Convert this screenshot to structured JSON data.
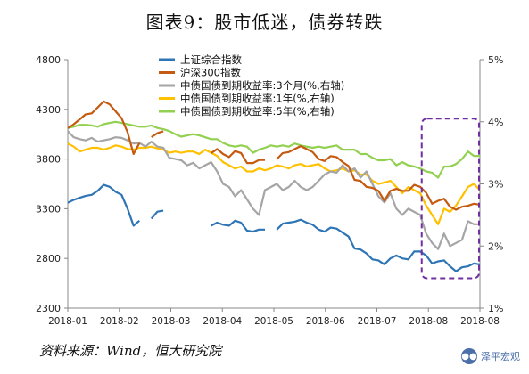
{
  "title": "图表9：股市低迷，债券转跌",
  "source": "资料来源：Wind，恒大研究院",
  "brand": {
    "label": "泽平宏观",
    "icon": "wechat-logo-icon"
  },
  "chart_data": {
    "type": "line",
    "x": [
      "2018-01-02",
      "2018-01-05",
      "2018-01-09",
      "2018-01-12",
      "2018-01-16",
      "2018-01-19",
      "2018-01-23",
      "2018-01-26",
      "2018-01-30",
      "2018-02-02",
      "2018-02-06",
      "2018-02-09",
      "2018-02-13",
      "2018-02-16",
      "2018-02-20",
      "2018-02-23",
      "2018-02-27",
      "2018-03-02",
      "2018-03-06",
      "2018-03-09",
      "2018-03-13",
      "2018-03-16",
      "2018-03-20",
      "2018-03-23",
      "2018-03-27",
      "2018-03-30",
      "2018-04-03",
      "2018-04-06",
      "2018-04-10",
      "2018-04-13",
      "2018-04-17",
      "2018-04-20",
      "2018-04-24",
      "2018-04-27",
      "2018-05-01",
      "2018-05-04",
      "2018-05-08",
      "2018-05-11",
      "2018-05-15",
      "2018-05-18",
      "2018-05-22",
      "2018-05-25",
      "2018-05-29",
      "2018-06-01",
      "2018-06-05",
      "2018-06-08",
      "2018-06-12",
      "2018-06-15",
      "2018-06-19",
      "2018-06-22",
      "2018-06-26",
      "2018-06-29",
      "2018-07-03",
      "2018-07-06",
      "2018-07-10",
      "2018-07-13",
      "2018-07-17",
      "2018-07-20",
      "2018-07-24",
      "2018-07-27",
      "2018-07-31",
      "2018-08-03",
      "2018-08-07",
      "2018-08-10",
      "2018-08-14",
      "2018-08-17",
      "2018-08-21",
      "2018-08-24",
      "2018-08-28",
      "2018-08-31"
    ],
    "x_ticks": [
      "2018-01",
      "2018-02",
      "2018-03",
      "2018-04",
      "2018-05",
      "2018-06",
      "2018-07",
      "2018-08",
      "2018-08"
    ],
    "y_left": {
      "min": 2300,
      "max": 4800,
      "ticks": [
        "2300",
        "2800",
        "3300",
        "3800",
        "4300",
        "4800"
      ]
    },
    "y_right": {
      "min": 1,
      "max": 5,
      "ticks": [
        "1%",
        "2%",
        "3%",
        "4%",
        "5%"
      ]
    },
    "series": [
      {
        "name": "上证综合指数",
        "axis": "left",
        "color": "#2e75b6",
        "values": [
          3360,
          3390,
          3410,
          3430,
          3440,
          3480,
          3540,
          3520,
          3470,
          3440,
          3300,
          3130,
          3180,
          null,
          3200,
          3270,
          3280,
          null,
          null,
          null,
          null,
          null,
          3290,
          null,
          3130,
          3160,
          3140,
          3130,
          3180,
          3160,
          3080,
          3070,
          3090,
          3090,
          null,
          3090,
          3150,
          3160,
          3170,
          3190,
          3160,
          3140,
          3090,
          3070,
          3110,
          3100,
          3060,
          3020,
          2900,
          2890,
          2850,
          2790,
          2780,
          2740,
          2800,
          2830,
          2800,
          2790,
          2870,
          2870,
          2830,
          2750,
          2770,
          2780,
          2720,
          2670,
          2710,
          2720,
          2750,
          2740
        ]
      },
      {
        "name": "沪深300指数",
        "axis": "left",
        "color": "#c55a11",
        "values": [
          4110,
          4150,
          4200,
          4250,
          4260,
          4320,
          4380,
          4350,
          4280,
          4210,
          4070,
          3850,
          3960,
          null,
          4020,
          4060,
          4080,
          null,
          null,
          null,
          null,
          null,
          4130,
          null,
          3860,
          3900,
          3850,
          3820,
          3880,
          3860,
          3760,
          3760,
          3790,
          3790,
          null,
          3800,
          3860,
          3870,
          3900,
          3930,
          3900,
          3870,
          3800,
          3780,
          3830,
          3820,
          3770,
          3730,
          3590,
          3580,
          3520,
          3510,
          3480,
          3380,
          3480,
          3500,
          3480,
          3480,
          3540,
          3520,
          3460,
          3350,
          3380,
          3400,
          3320,
          3290,
          3320,
          3330,
          3350,
          3340
        ]
      },
      {
        "name": "中债国债到期收益率:3个月(%,右轴)",
        "axis": "right",
        "color": "#a5a5a5",
        "values": [
          3.85,
          3.75,
          3.72,
          3.7,
          3.74,
          3.68,
          3.7,
          3.72,
          3.75,
          3.74,
          3.7,
          3.65,
          3.66,
          3.6,
          3.68,
          3.6,
          3.58,
          3.42,
          3.4,
          3.38,
          3.3,
          3.34,
          3.25,
          3.3,
          3.35,
          3.2,
          3.0,
          2.95,
          2.8,
          2.9,
          2.75,
          2.6,
          2.5,
          2.9,
          2.95,
          3.0,
          2.9,
          2.95,
          3.05,
          2.95,
          2.9,
          2.95,
          3.05,
          3.15,
          3.2,
          3.18,
          3.3,
          3.2,
          3.25,
          3.1,
          3.2,
          3.0,
          2.8,
          2.7,
          2.85,
          2.6,
          2.5,
          2.6,
          2.55,
          2.5,
          2.2,
          2.05,
          1.95,
          2.2,
          2.0,
          2.05,
          2.1,
          2.4,
          2.35,
          2.35
        ]
      },
      {
        "name": "中债国债到期收益率:1年(%,右轴)",
        "axis": "right",
        "color": "#ffc000",
        "values": [
          3.65,
          3.6,
          3.52,
          3.55,
          3.58,
          3.58,
          3.55,
          3.58,
          3.62,
          3.6,
          3.56,
          3.55,
          3.58,
          3.58,
          3.6,
          3.57,
          3.55,
          3.5,
          3.52,
          3.5,
          3.52,
          3.52,
          3.48,
          3.55,
          3.5,
          3.45,
          3.35,
          3.3,
          3.25,
          3.28,
          3.2,
          3.2,
          3.25,
          3.22,
          3.25,
          3.3,
          3.28,
          3.25,
          3.3,
          3.32,
          3.28,
          3.3,
          3.32,
          3.25,
          3.2,
          3.22,
          3.25,
          3.2,
          3.22,
          3.15,
          3.15,
          3.05,
          3.0,
          3.02,
          3.05,
          2.95,
          2.85,
          2.95,
          2.9,
          2.85,
          2.65,
          2.5,
          2.35,
          2.6,
          2.55,
          2.65,
          2.8,
          2.95,
          3.0,
          2.9
        ]
      },
      {
        "name": "中债国债到期收益率:5年(%,右轴)",
        "axis": "right",
        "color": "#92d050",
        "values": [
          3.9,
          3.92,
          3.95,
          3.95,
          3.94,
          3.92,
          3.96,
          3.98,
          4.0,
          3.98,
          3.96,
          3.94,
          3.92,
          3.92,
          3.94,
          3.9,
          3.88,
          3.85,
          3.8,
          3.76,
          3.78,
          3.8,
          3.78,
          3.75,
          3.72,
          3.72,
          3.66,
          3.62,
          3.6,
          3.62,
          3.6,
          3.5,
          3.55,
          3.58,
          3.62,
          3.6,
          3.62,
          3.6,
          3.65,
          3.62,
          3.6,
          3.58,
          3.6,
          3.58,
          3.6,
          3.62,
          3.55,
          3.55,
          3.55,
          3.48,
          3.48,
          3.42,
          3.38,
          3.38,
          3.4,
          3.3,
          3.35,
          3.3,
          3.28,
          3.25,
          3.2,
          3.18,
          3.1,
          3.28,
          3.28,
          3.32,
          3.4,
          3.52,
          3.45,
          3.45
        ]
      }
    ],
    "grid": false,
    "legend": "top-left",
    "annotation": "dashed purple box around 2018-08"
  }
}
